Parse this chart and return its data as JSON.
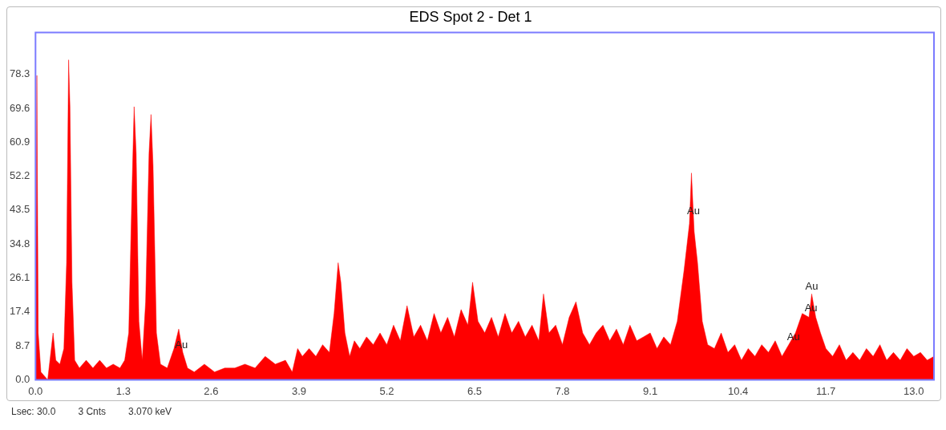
{
  "chart_data": {
    "type": "area",
    "title": "EDS Spot 2 - Det 1",
    "xlim": [
      0,
      13.3
    ],
    "xticks": [
      {
        "value": 0,
        "label": "0.0"
      },
      1.3,
      2.6,
      3.9,
      5.2,
      6.5,
      7.8,
      9.1,
      10.4,
      11.7,
      {
        "value": 13,
        "label": "13.0"
      }
    ],
    "ylim": [
      0,
      89
    ],
    "yticks": [
      {
        "value": 0,
        "label": "0.0"
      },
      8.7,
      17.4,
      26.1,
      34.8,
      43.5,
      52.2,
      60.9,
      69.6,
      78.3
    ],
    "grid": false,
    "legend": false,
    "marker": "none",
    "series": [
      {
        "color": "#ff0000",
        "x": [
          0,
          0.02,
          0.04,
          0.08,
          0.18,
          0.22,
          0.26,
          0.3,
          0.36,
          0.42,
          0.46,
          0.49,
          0.51,
          0.54,
          0.58,
          0.65,
          0.75,
          0.85,
          0.95,
          1.05,
          1.15,
          1.25,
          1.32,
          1.38,
          1.43,
          1.46,
          1.49,
          1.53,
          1.58,
          1.63,
          1.68,
          1.71,
          1.74,
          1.79,
          1.85,
          1.95,
          2.05,
          2.12,
          2.18,
          2.25,
          2.35,
          2.5,
          2.65,
          2.8,
          2.95,
          3.1,
          3.25,
          3.4,
          3.55,
          3.7,
          3.8,
          3.88,
          3.95,
          4.05,
          4.15,
          4.25,
          4.35,
          4.42,
          4.48,
          4.52,
          4.58,
          4.65,
          4.72,
          4.8,
          4.9,
          5,
          5.1,
          5.2,
          5.3,
          5.4,
          5.5,
          5.6,
          5.7,
          5.8,
          5.9,
          6,
          6.1,
          6.2,
          6.3,
          6.4,
          6.47,
          6.55,
          6.65,
          6.75,
          6.85,
          6.95,
          7.05,
          7.15,
          7.25,
          7.35,
          7.45,
          7.52,
          7.6,
          7.7,
          7.8,
          7.9,
          8,
          8.1,
          8.2,
          8.3,
          8.4,
          8.5,
          8.6,
          8.7,
          8.8,
          8.9,
          9,
          9.1,
          9.2,
          9.3,
          9.4,
          9.5,
          9.6,
          9.68,
          9.71,
          9.75,
          9.8,
          9.87,
          9.95,
          10.05,
          10.15,
          10.25,
          10.35,
          10.45,
          10.55,
          10.65,
          10.75,
          10.85,
          10.95,
          11.05,
          11.15,
          11.25,
          11.35,
          11.45,
          11.49,
          11.55,
          11.62,
          11.7,
          11.8,
          11.9,
          12,
          12.1,
          12.2,
          12.3,
          12.4,
          12.5,
          12.6,
          12.7,
          12.8,
          12.9,
          13,
          13.1,
          13.2,
          13.3
        ],
        "values": [
          0,
          78,
          12,
          2,
          0,
          6,
          12,
          5,
          4,
          8,
          30,
          82,
          70,
          25,
          5,
          3,
          5,
          3,
          5,
          3,
          4,
          3,
          5,
          12,
          50,
          70,
          58,
          15,
          5,
          20,
          58,
          68,
          55,
          12,
          4,
          3,
          8,
          13,
          7,
          3,
          2,
          4,
          2,
          3,
          3,
          4,
          3,
          6,
          4,
          5,
          2,
          8,
          6,
          8,
          6,
          9,
          7,
          17,
          30,
          25,
          12,
          6,
          10,
          8,
          11,
          9,
          12,
          9,
          14,
          10,
          19,
          11,
          14,
          10,
          17,
          12,
          16,
          11,
          18,
          14,
          25,
          15,
          12,
          16,
          11,
          17,
          12,
          15,
          11,
          14,
          10,
          22,
          12,
          14,
          9,
          16,
          20,
          12,
          9,
          12,
          14,
          10,
          13,
          9,
          14,
          10,
          11,
          12,
          8,
          11,
          9,
          15,
          28,
          40,
          53,
          38,
          30,
          15,
          9,
          8,
          12,
          7,
          9,
          5,
          8,
          6,
          9,
          7,
          10,
          6,
          9,
          12,
          17,
          16,
          22,
          16,
          12,
          8,
          6,
          9,
          5,
          7,
          5,
          8,
          6,
          9,
          5,
          7,
          5,
          8,
          6,
          7,
          5,
          6
        ]
      }
    ],
    "annotations": [
      {
        "text": "Au",
        "x": 2.16,
        "y": 7
      },
      {
        "text": "Au",
        "x": 9.74,
        "y": 41.5
      },
      {
        "text": "Au",
        "x": 11.49,
        "y": 22
      },
      {
        "text": "Au",
        "x": 11.48,
        "y": 16.6
      },
      {
        "text": "Au",
        "x": 11.22,
        "y": 9.1
      },
      "Lsec: 30.0",
      "3 Cnts",
      "3.070 keV"
    ]
  }
}
